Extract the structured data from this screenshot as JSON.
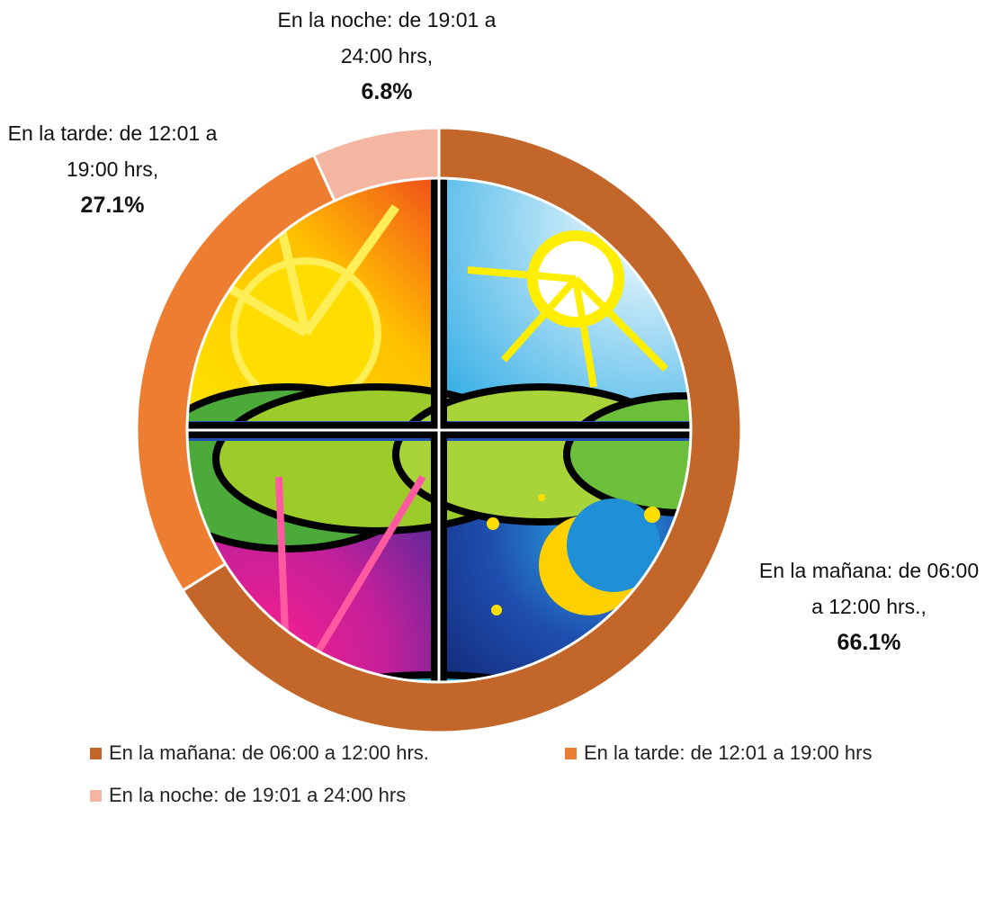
{
  "chart_data": {
    "type": "donut",
    "categories": [
      "En la mañana: de 06:00 a 12:00 hrs.",
      "En la tarde: de 12:01 a 19:00 hrs",
      "En la noche: de 19:01 a 24:00 hrs"
    ],
    "data_labels": [
      "En la mañana: de 06:00 a 12:00 hrs.,",
      "En la tarde: de 12:01 a 19:00 hrs,",
      "En la noche: de 19:01 a 24:00 hrs,"
    ],
    "values": [
      66.1,
      27.1,
      6.8
    ],
    "value_labels": [
      "66.1%",
      "27.1%",
      "6.8%"
    ],
    "colors": [
      "#c3662a",
      "#ed7d31",
      "#f4b6a0"
    ],
    "legend": "bottom"
  }
}
